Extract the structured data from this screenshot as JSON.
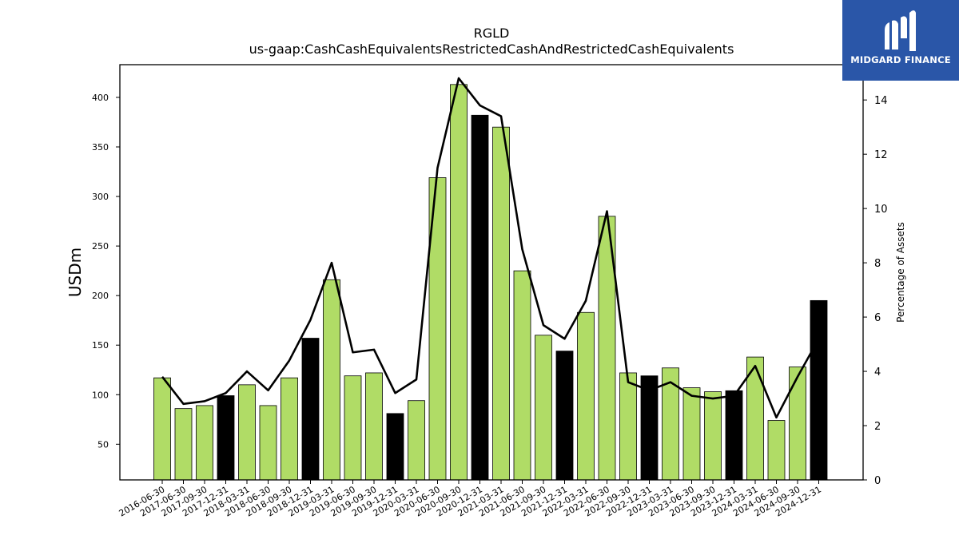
{
  "chart_data": {
    "type": "bar",
    "title": "RGLD",
    "subtitle": "us-gaap:CashCashEquivalentsRestrictedCashAndRestrictedCashEquivalents",
    "ylabel": "USDm",
    "y2label": "Percentage of Assets",
    "ylim": [
      14,
      433
    ],
    "y2lim": [
      0,
      15.3
    ],
    "yticks": [
      50,
      100,
      150,
      200,
      250,
      300,
      350,
      400
    ],
    "y2ticks": [
      0,
      2,
      4,
      6,
      8,
      10,
      12,
      14
    ],
    "categories": [
      "2016-06-30",
      "2017-06-30",
      "2017-09-30",
      "2017-12-31",
      "2018-03-31",
      "2018-06-30",
      "2018-09-30",
      "2018-12-31",
      "2019-03-31",
      "2019-06-30",
      "2019-09-30",
      "2019-12-31",
      "2020-03-31",
      "2020-06-30",
      "2020-09-30",
      "2020-12-31",
      "2021-03-31",
      "2021-06-30",
      "2021-09-30",
      "2021-12-31",
      "2022-03-31",
      "2022-06-30",
      "2022-09-30",
      "2022-12-31",
      "2023-03-31",
      "2023-06-30",
      "2023-09-30",
      "2023-12-31",
      "2024-03-31",
      "2024-06-30",
      "2024-09-30",
      "2024-12-31"
    ],
    "series": [
      {
        "type": "bar",
        "values": [
          117,
          86,
          89,
          99,
          110,
          89,
          117,
          157,
          216,
          119,
          122,
          81,
          94,
          319,
          413,
          382,
          370,
          225,
          160,
          144,
          183,
          280,
          122,
          119,
          127,
          107,
          103,
          104,
          138,
          74,
          128,
          195
        ],
        "year_end_highlight": [
          false,
          false,
          false,
          true,
          false,
          false,
          false,
          true,
          false,
          false,
          false,
          true,
          false,
          false,
          false,
          true,
          false,
          false,
          false,
          true,
          false,
          false,
          false,
          true,
          false,
          false,
          false,
          true,
          false,
          false,
          false,
          true
        ]
      },
      {
        "type": "line",
        "axis": "right",
        "values": [
          3.8,
          2.8,
          2.9,
          3.2,
          4.0,
          3.3,
          4.4,
          5.9,
          8.0,
          4.7,
          4.8,
          3.2,
          3.7,
          11.5,
          14.8,
          13.8,
          13.4,
          8.5,
          5.7,
          5.2,
          6.6,
          9.9,
          3.6,
          3.3,
          3.6,
          3.1,
          3.0,
          3.1,
          4.2,
          2.3,
          3.8,
          5.2
        ]
      }
    ],
    "colors": {
      "bar": "#b0dc66",
      "bar_year_end": "#000000",
      "line": "#000000"
    },
    "grid": false,
    "legend": "none"
  },
  "logo": {
    "text": "MIDGARD FINANCE",
    "background": "#2a56a8"
  }
}
